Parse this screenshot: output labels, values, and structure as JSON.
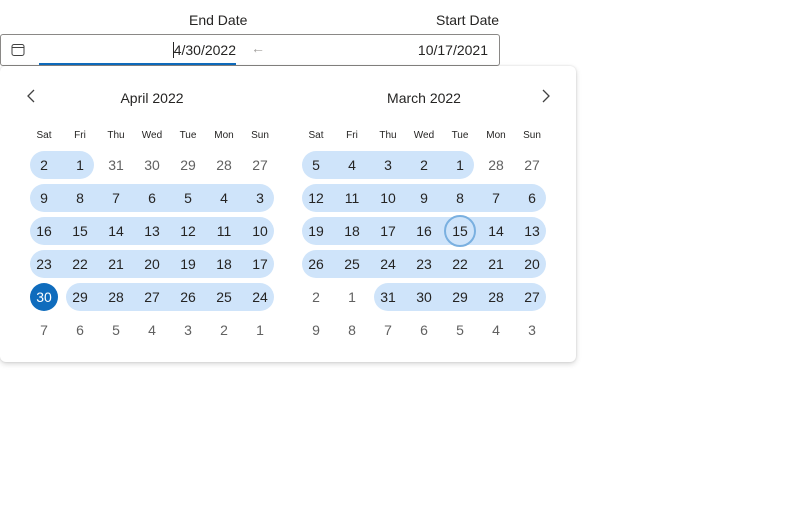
{
  "labels": {
    "end_date": "End Date",
    "start_date": "Start Date"
  },
  "input": {
    "end_value": "4/30/2022",
    "start_value": "10/17/2021",
    "separator": "←"
  },
  "colors": {
    "accent": "#0f6cbd",
    "range_band": "#cfe4fa",
    "today_ring": "#7ab0e0"
  },
  "months": [
    {
      "title": "April 2022",
      "weekdays": [
        "Sat",
        "Fri",
        "Thu",
        "Wed",
        "Tue",
        "Mon",
        "Sun"
      ],
      "weeks": [
        [
          "2",
          "1",
          "31",
          "30",
          "29",
          "28",
          "27"
        ],
        [
          "9",
          "8",
          "7",
          "6",
          "5",
          "4",
          "3"
        ],
        [
          "16",
          "15",
          "14",
          "13",
          "12",
          "11",
          "10"
        ],
        [
          "23",
          "22",
          "21",
          "20",
          "19",
          "18",
          "17"
        ],
        [
          "30",
          "29",
          "28",
          "27",
          "26",
          "25",
          "24"
        ],
        [
          "7",
          "6",
          "5",
          "4",
          "3",
          "2",
          "1"
        ]
      ]
    },
    {
      "title": "March 2022",
      "weekdays": [
        "Sat",
        "Fri",
        "Thu",
        "Wed",
        "Tue",
        "Mon",
        "Sun"
      ],
      "weeks": [
        [
          "5",
          "4",
          "3",
          "2",
          "1",
          "28",
          "27"
        ],
        [
          "12",
          "11",
          "10",
          "9",
          "8",
          "7",
          "6"
        ],
        [
          "19",
          "18",
          "17",
          "16",
          "15",
          "14",
          "13"
        ],
        [
          "26",
          "25",
          "24",
          "23",
          "22",
          "21",
          "20"
        ],
        [
          "2",
          "1",
          "31",
          "30",
          "29",
          "28",
          "27"
        ],
        [
          "9",
          "8",
          "7",
          "6",
          "5",
          "4",
          "3"
        ]
      ]
    }
  ],
  "icons": {
    "calendar": "calendar-icon",
    "prev": "chevron-left-icon",
    "next": "chevron-right-icon"
  }
}
